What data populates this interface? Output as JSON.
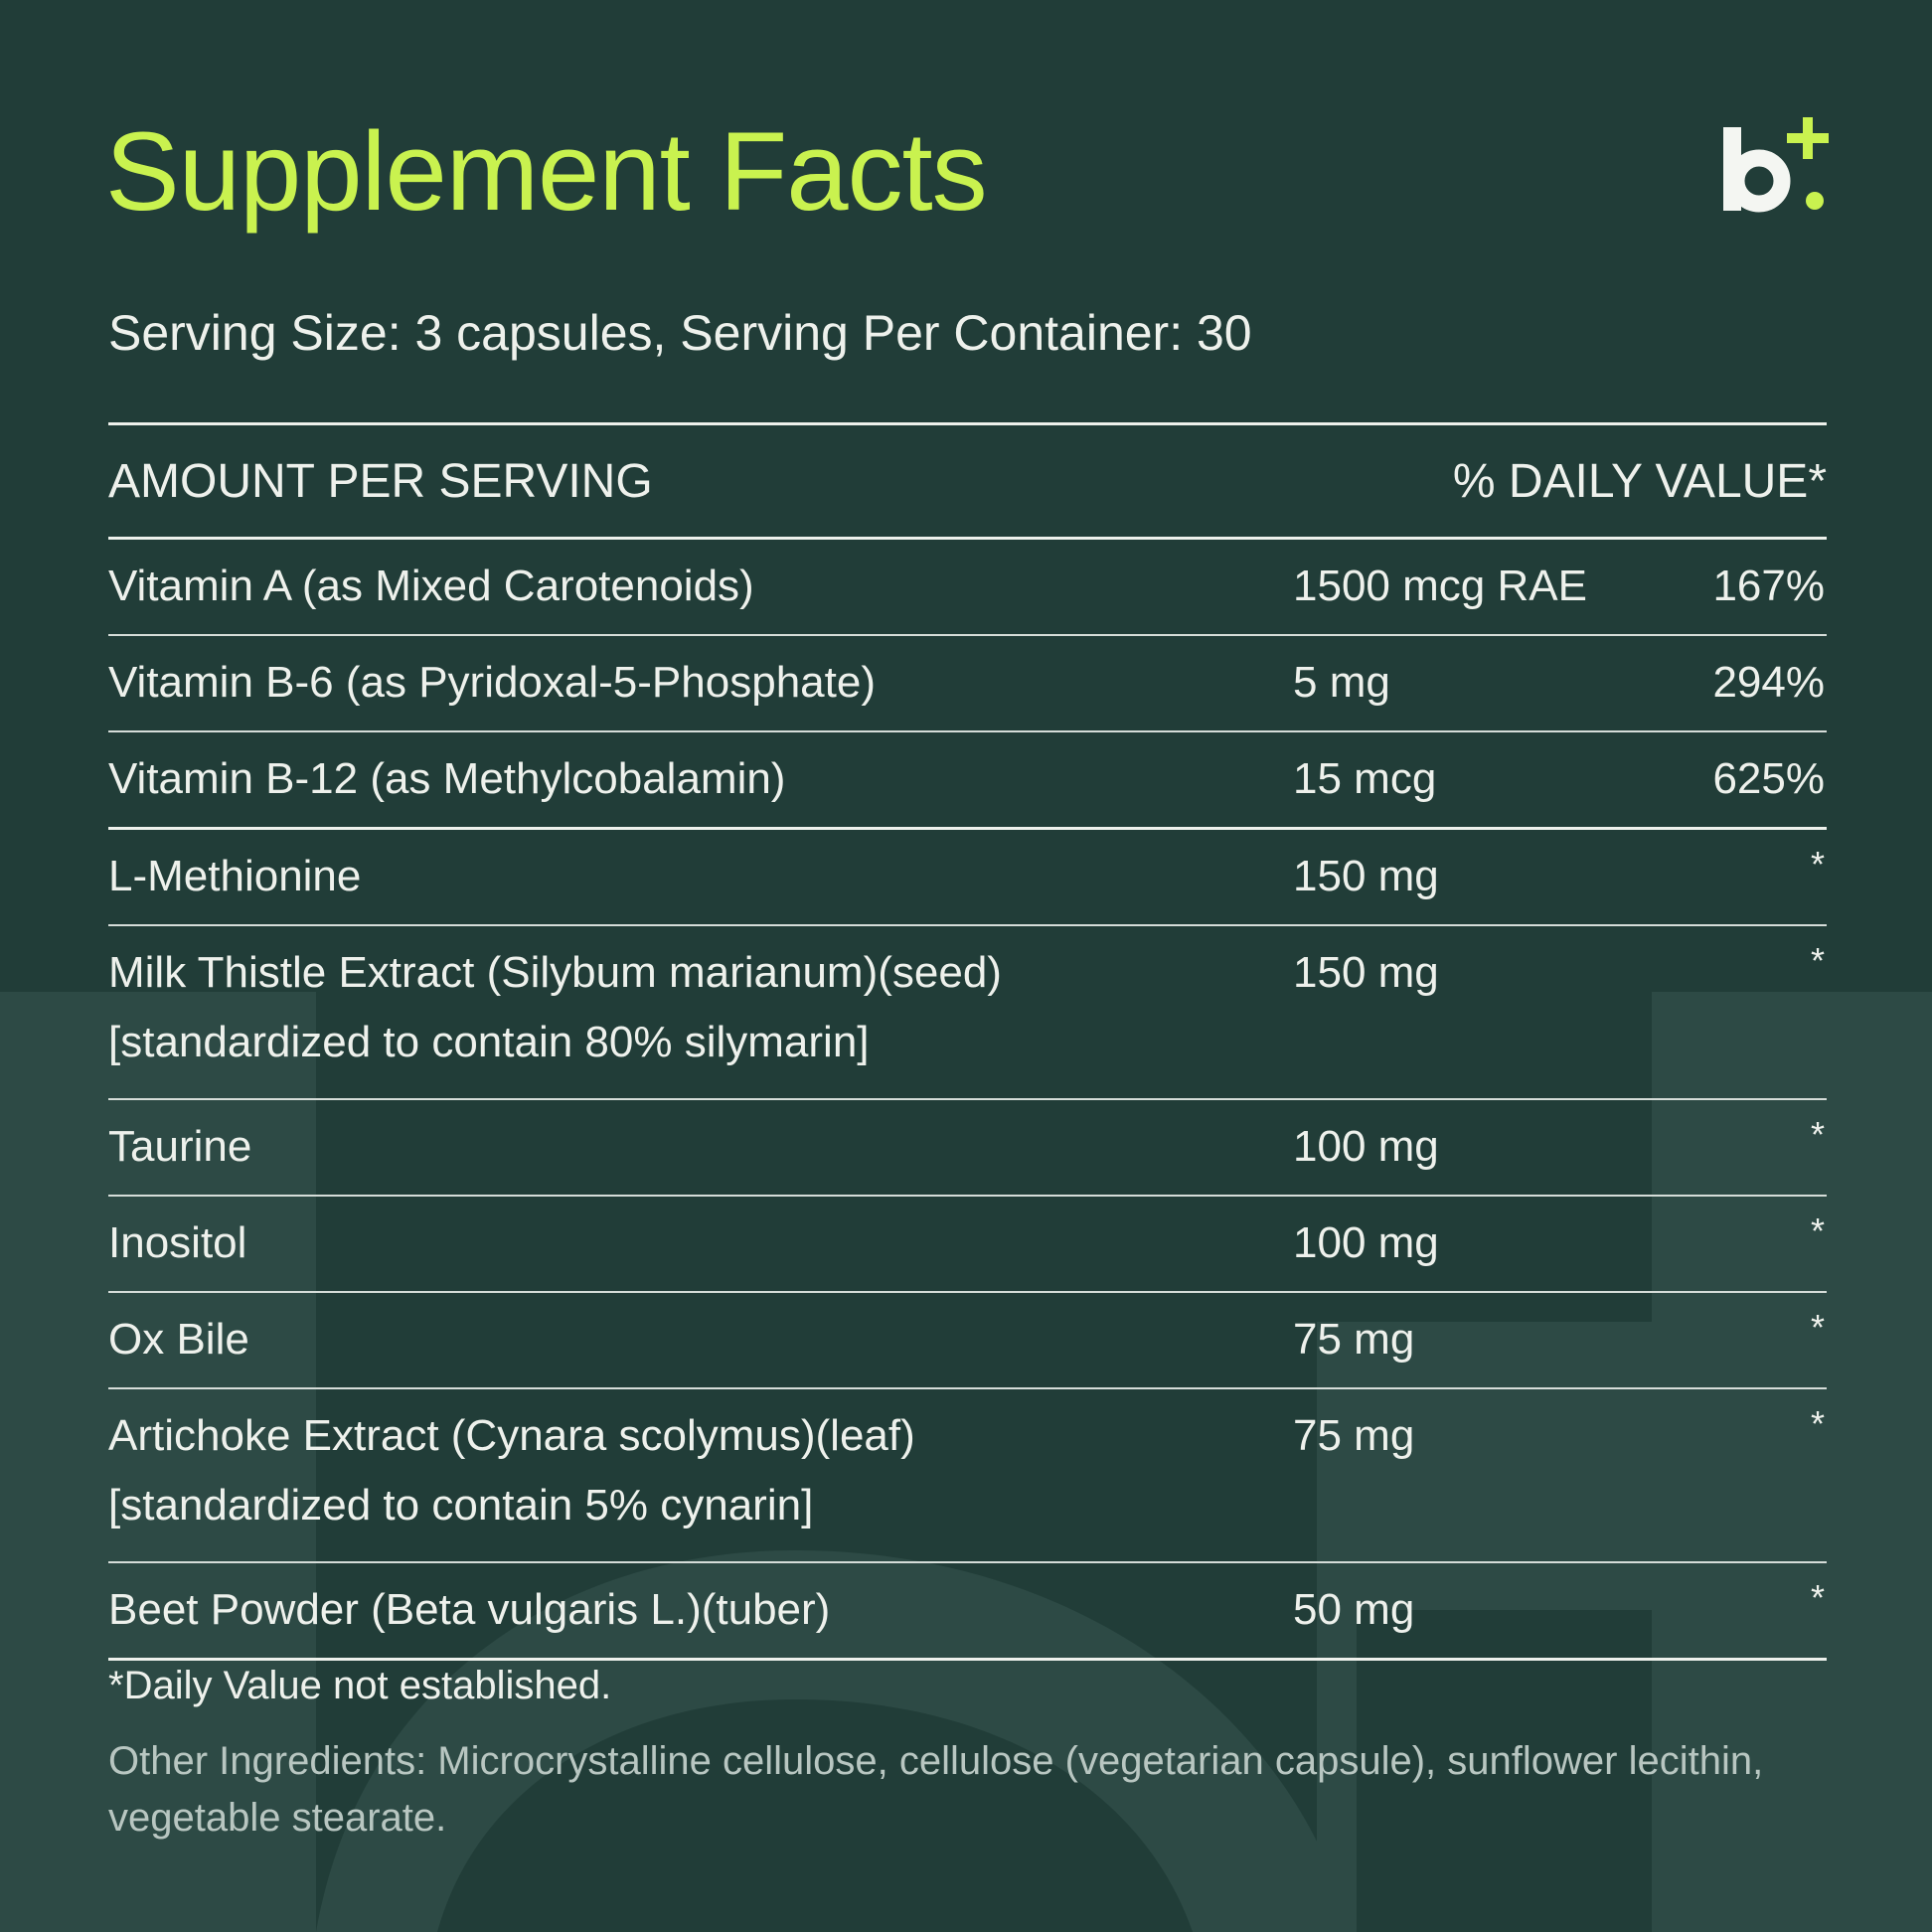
{
  "header": {
    "title": "Supplement Facts"
  },
  "serving": "Serving Size: 3 capsules, Serving Per Container: 30",
  "table": {
    "columns": [
      "AMOUNT PER SERVING",
      "% DAILY VALUE*"
    ],
    "rows": [
      {
        "name": "Vitamin A (as Mixed Carotenoids)",
        "amount": "1500 mcg RAE",
        "dv": "167%"
      },
      {
        "name": "Vitamin B-6 (as Pyridoxal-5-Phosphate)",
        "amount": "5 mg",
        "dv": "294%"
      },
      {
        "name": "Vitamin B-12 (as Methylcobalamin)",
        "amount": "15 mcg",
        "dv": "625%"
      },
      {
        "name": "L-Methionine",
        "amount": "150 mg",
        "dv": "*"
      },
      {
        "name": "Milk Thistle Extract (Silybum marianum)(seed)",
        "detail": "[standardized to contain 80% silymarin]",
        "amount": "150 mg",
        "dv": "*"
      },
      {
        "name": "Taurine",
        "amount": "100 mg",
        "dv": "*"
      },
      {
        "name": "Inositol",
        "amount": "100 mg",
        "dv": "*"
      },
      {
        "name": "Ox Bile",
        "amount": "75 mg",
        "dv": "*"
      },
      {
        "name": "Artichoke Extract (Cynara scolymus)(leaf)",
        "detail": "[standardized to contain 5% cynarin]",
        "amount": "75 mg",
        "dv": "*"
      },
      {
        "name": "Beet Powder (Beta vulgaris L.)(tuber)",
        "amount": "50 mg",
        "dv": "*"
      }
    ]
  },
  "footnote": "*Daily Value not established.",
  "other_ingredients": "Other Ingredients: Microcrystalline cellulose, cellulose (vegetarian capsule), sunflower lecithin, vegetable stearate."
}
